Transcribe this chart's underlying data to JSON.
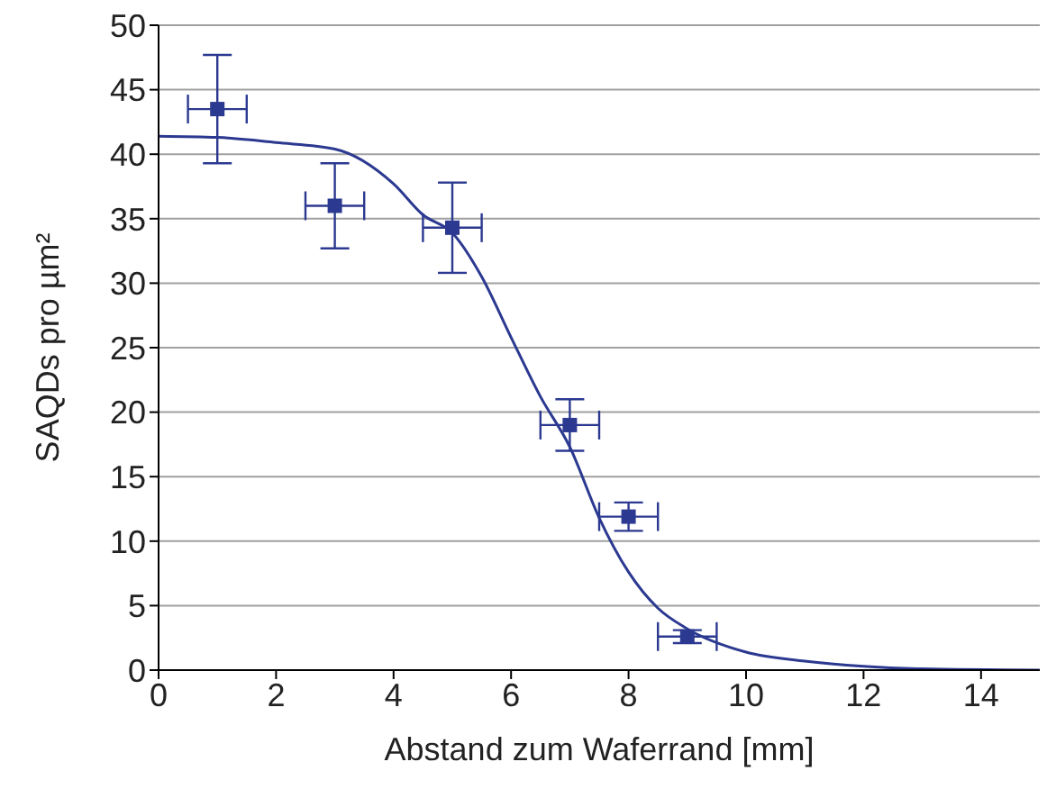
{
  "chart_data": {
    "type": "scatter",
    "xlabel": "Abstand zum Waferrand [mm]",
    "ylabel": "SAQDs pro µm²",
    "xlim": [
      0,
      15
    ],
    "xticks": [
      0,
      2,
      4,
      6,
      8,
      10,
      12,
      14
    ],
    "ylim": [
      0,
      50
    ],
    "yticks": [
      0,
      5,
      10,
      15,
      20,
      25,
      30,
      35,
      40,
      45,
      50
    ],
    "grid": "y",
    "series": [
      {
        "marker": "square",
        "color": "#2b3990",
        "x": [
          1,
          3,
          5,
          7,
          8,
          9
        ],
        "values": [
          43.5,
          36.0,
          34.3,
          19.0,
          11.9,
          2.6
        ],
        "errors": [
          4.2,
          3.3,
          3.5,
          2.0,
          1.1,
          0.5
        ],
        "xerrors": [
          0.5,
          0.5,
          0.5,
          0.5,
          0.5,
          0.5
        ]
      },
      {
        "type": "line",
        "color": "#2b3990",
        "x": [
          0,
          1,
          2,
          3,
          4,
          4.5,
          5,
          5.5,
          6,
          6.5,
          7,
          7.5,
          8,
          8.5,
          9,
          10,
          11,
          12,
          13,
          15
        ],
        "values": [
          41.4,
          41.3,
          40.9,
          40.4,
          37.7,
          35.3,
          33.9,
          30.5,
          25.8,
          21.2,
          17.3,
          11.8,
          7.6,
          4.8,
          3.2,
          1.4,
          0.7,
          0.3,
          0.1,
          0
        ]
      }
    ]
  }
}
